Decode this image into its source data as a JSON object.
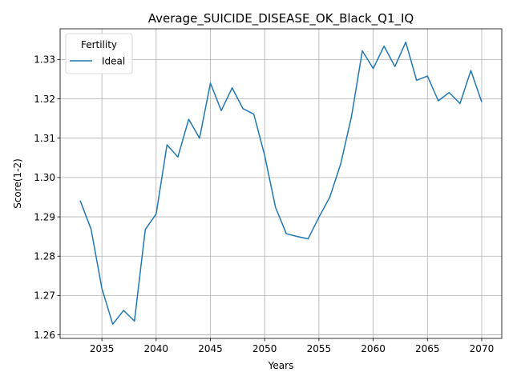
{
  "chart_data": {
    "type": "line",
    "title": "Average_SUICIDE_DISEASE_OK_Black_Q1_IQ",
    "xlabel": "Years",
    "ylabel": "Score(1-2)",
    "xlim": [
      2031.15,
      2071.85
    ],
    "ylim": [
      1.2591,
      1.3378
    ],
    "xticks": [
      2035,
      2040,
      2045,
      2050,
      2055,
      2060,
      2065,
      2070
    ],
    "yticks": [
      1.26,
      1.27,
      1.28,
      1.29,
      1.3,
      1.31,
      1.32,
      1.33
    ],
    "xtick_labels": [
      "2035",
      "2040",
      "2045",
      "2050",
      "2055",
      "2060",
      "2065",
      "2070"
    ],
    "ytick_labels": [
      "1.26",
      "1.27",
      "1.28",
      "1.29",
      "1.30",
      "1.31",
      "1.32",
      "1.33"
    ],
    "grid": true,
    "legend": {
      "title": "Fertility",
      "placement": "upper-left"
    },
    "series": [
      {
        "name": "Ideal",
        "color": "#1f77b4",
        "x": [
          2033,
          2034,
          2035,
          2036,
          2037,
          2038,
          2039,
          2040,
          2041,
          2042,
          2043,
          2044,
          2045,
          2046,
          2047,
          2048,
          2049,
          2050,
          2051,
          2052,
          2053,
          2054,
          2055,
          2056,
          2057,
          2058,
          2059,
          2060,
          2061,
          2062,
          2063,
          2064,
          2065,
          2066,
          2067,
          2068,
          2069,
          2070
        ],
        "y": [
          1.2941,
          1.2869,
          1.2718,
          1.2627,
          1.2662,
          1.2635,
          1.2868,
          1.2907,
          1.3083,
          1.3052,
          1.3148,
          1.31,
          1.324,
          1.317,
          1.3228,
          1.3175,
          1.3161,
          1.3056,
          1.2924,
          1.2857,
          1.285,
          1.2844,
          1.2899,
          1.295,
          1.3034,
          1.3155,
          1.3322,
          1.3277,
          1.3334,
          1.3282,
          1.3344,
          1.3247,
          1.3258,
          1.3195,
          1.3216,
          1.3188,
          1.3272,
          1.3192
        ]
      }
    ]
  }
}
